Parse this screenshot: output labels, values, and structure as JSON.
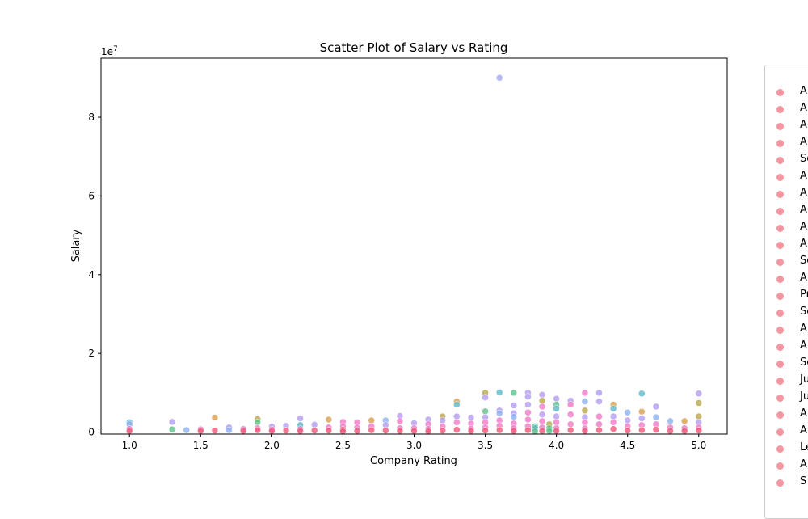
{
  "chart_data": {
    "type": "scatter",
    "title": "Scatter Plot of Salary vs Rating",
    "xlabel": "Company Rating",
    "ylabel": "Salary",
    "y_scale_label": "1e7",
    "xlim": [
      0.8,
      5.2
    ],
    "ylim": [
      -500000,
      95000000
    ],
    "x_ticks": [
      1.0,
      1.5,
      2.0,
      2.5,
      3.0,
      3.5,
      4.0,
      4.5,
      5.0
    ],
    "x_tick_labels": [
      "1.0",
      "1.5",
      "2.0",
      "2.5",
      "3.0",
      "3.5",
      "4.0",
      "4.5",
      "5.0"
    ],
    "y_ticks": [
      0,
      20000000,
      40000000,
      60000000,
      80000000
    ],
    "y_tick_labels": [
      "0",
      "2",
      "4",
      "6",
      "8"
    ],
    "grid": false,
    "legend_placement": "outside right",
    "colors": {
      "outlier": "#a5a8f3",
      "purple": "#b49cf0",
      "blue": "#8fb0f0",
      "teal": "#5cb8c8",
      "green": "#5ec28a",
      "olive": "#b8a84a",
      "orange": "#d8a050",
      "pink": "#f07ac8",
      "red": "#f05878"
    },
    "points": [
      {
        "x": 3.6,
        "y": 90000000,
        "c": "outlier"
      },
      {
        "x": 1.0,
        "y": 2500000,
        "c": "teal"
      },
      {
        "x": 1.0,
        "y": 2000000,
        "c": "blue"
      },
      {
        "x": 1.0,
        "y": 800000,
        "c": "pink"
      },
      {
        "x": 1.0,
        "y": 300000,
        "c": "red"
      },
      {
        "x": 1.3,
        "y": 2600000,
        "c": "purple"
      },
      {
        "x": 1.3,
        "y": 700000,
        "c": "green"
      },
      {
        "x": 1.4,
        "y": 500000,
        "c": "blue"
      },
      {
        "x": 1.5,
        "y": 700000,
        "c": "pink"
      },
      {
        "x": 1.5,
        "y": 300000,
        "c": "red"
      },
      {
        "x": 1.6,
        "y": 3700000,
        "c": "orange"
      },
      {
        "x": 1.6,
        "y": 400000,
        "c": "red"
      },
      {
        "x": 1.7,
        "y": 1200000,
        "c": "purple"
      },
      {
        "x": 1.7,
        "y": 500000,
        "c": "blue"
      },
      {
        "x": 1.8,
        "y": 800000,
        "c": "pink"
      },
      {
        "x": 1.8,
        "y": 300000,
        "c": "red"
      },
      {
        "x": 1.9,
        "y": 3300000,
        "c": "olive"
      },
      {
        "x": 1.9,
        "y": 2500000,
        "c": "green"
      },
      {
        "x": 1.9,
        "y": 1000000,
        "c": "pink"
      },
      {
        "x": 1.9,
        "y": 500000,
        "c": "red"
      },
      {
        "x": 2.0,
        "y": 1400000,
        "c": "purple"
      },
      {
        "x": 2.0,
        "y": 700000,
        "c": "pink"
      },
      {
        "x": 2.0,
        "y": 300000,
        "c": "red"
      },
      {
        "x": 2.1,
        "y": 1600000,
        "c": "purple"
      },
      {
        "x": 2.1,
        "y": 400000,
        "c": "red"
      },
      {
        "x": 2.2,
        "y": 3500000,
        "c": "purple"
      },
      {
        "x": 2.2,
        "y": 1800000,
        "c": "teal"
      },
      {
        "x": 2.2,
        "y": 800000,
        "c": "pink"
      },
      {
        "x": 2.2,
        "y": 300000,
        "c": "red"
      },
      {
        "x": 2.3,
        "y": 1900000,
        "c": "purple"
      },
      {
        "x": 2.3,
        "y": 400000,
        "c": "red"
      },
      {
        "x": 2.4,
        "y": 3200000,
        "c": "orange"
      },
      {
        "x": 2.4,
        "y": 1200000,
        "c": "pink"
      },
      {
        "x": 2.4,
        "y": 400000,
        "c": "red"
      },
      {
        "x": 2.5,
        "y": 2600000,
        "c": "pink"
      },
      {
        "x": 2.5,
        "y": 1500000,
        "c": "pink"
      },
      {
        "x": 2.5,
        "y": 600000,
        "c": "red"
      },
      {
        "x": 2.5,
        "y": 200000,
        "c": "red"
      },
      {
        "x": 2.6,
        "y": 2500000,
        "c": "pink"
      },
      {
        "x": 2.6,
        "y": 1200000,
        "c": "pink"
      },
      {
        "x": 2.6,
        "y": 300000,
        "c": "red"
      },
      {
        "x": 2.7,
        "y": 3000000,
        "c": "orange"
      },
      {
        "x": 2.7,
        "y": 1500000,
        "c": "pink"
      },
      {
        "x": 2.7,
        "y": 500000,
        "c": "red"
      },
      {
        "x": 2.8,
        "y": 3000000,
        "c": "blue"
      },
      {
        "x": 2.8,
        "y": 1800000,
        "c": "purple"
      },
      {
        "x": 2.8,
        "y": 400000,
        "c": "red"
      },
      {
        "x": 2.9,
        "y": 4100000,
        "c": "purple"
      },
      {
        "x": 2.9,
        "y": 2800000,
        "c": "pink"
      },
      {
        "x": 2.9,
        "y": 1000000,
        "c": "pink"
      },
      {
        "x": 2.9,
        "y": 300000,
        "c": "red"
      },
      {
        "x": 3.0,
        "y": 2300000,
        "c": "purple"
      },
      {
        "x": 3.0,
        "y": 1000000,
        "c": "pink"
      },
      {
        "x": 3.0,
        "y": 300000,
        "c": "red"
      },
      {
        "x": 3.1,
        "y": 3200000,
        "c": "purple"
      },
      {
        "x": 3.1,
        "y": 2000000,
        "c": "pink"
      },
      {
        "x": 3.1,
        "y": 800000,
        "c": "pink"
      },
      {
        "x": 3.1,
        "y": 200000,
        "c": "red"
      },
      {
        "x": 3.2,
        "y": 4000000,
        "c": "olive"
      },
      {
        "x": 3.2,
        "y": 3000000,
        "c": "purple"
      },
      {
        "x": 3.2,
        "y": 1500000,
        "c": "pink"
      },
      {
        "x": 3.2,
        "y": 400000,
        "c": "red"
      },
      {
        "x": 3.3,
        "y": 7800000,
        "c": "orange"
      },
      {
        "x": 3.3,
        "y": 7000000,
        "c": "teal"
      },
      {
        "x": 3.3,
        "y": 4000000,
        "c": "purple"
      },
      {
        "x": 3.3,
        "y": 2500000,
        "c": "pink"
      },
      {
        "x": 3.3,
        "y": 600000,
        "c": "red"
      },
      {
        "x": 3.4,
        "y": 3700000,
        "c": "purple"
      },
      {
        "x": 3.4,
        "y": 2200000,
        "c": "pink"
      },
      {
        "x": 3.4,
        "y": 900000,
        "c": "pink"
      },
      {
        "x": 3.4,
        "y": 300000,
        "c": "red"
      },
      {
        "x": 3.5,
        "y": 10000000,
        "c": "olive"
      },
      {
        "x": 3.5,
        "y": 8800000,
        "c": "purple"
      },
      {
        "x": 3.5,
        "y": 5300000,
        "c": "green"
      },
      {
        "x": 3.5,
        "y": 3800000,
        "c": "purple"
      },
      {
        "x": 3.5,
        "y": 2500000,
        "c": "pink"
      },
      {
        "x": 3.5,
        "y": 1200000,
        "c": "pink"
      },
      {
        "x": 3.5,
        "y": 400000,
        "c": "red"
      },
      {
        "x": 3.6,
        "y": 10100000,
        "c": "teal"
      },
      {
        "x": 3.6,
        "y": 5500000,
        "c": "purple"
      },
      {
        "x": 3.6,
        "y": 4800000,
        "c": "blue"
      },
      {
        "x": 3.6,
        "y": 3000000,
        "c": "pink"
      },
      {
        "x": 3.6,
        "y": 1600000,
        "c": "pink"
      },
      {
        "x": 3.6,
        "y": 500000,
        "c": "red"
      },
      {
        "x": 3.7,
        "y": 10000000,
        "c": "green"
      },
      {
        "x": 3.7,
        "y": 6800000,
        "c": "purple"
      },
      {
        "x": 3.7,
        "y": 4800000,
        "c": "purple"
      },
      {
        "x": 3.7,
        "y": 3900000,
        "c": "blue"
      },
      {
        "x": 3.7,
        "y": 2200000,
        "c": "pink"
      },
      {
        "x": 3.7,
        "y": 1000000,
        "c": "pink"
      },
      {
        "x": 3.7,
        "y": 300000,
        "c": "red"
      },
      {
        "x": 3.8,
        "y": 10000000,
        "c": "purple"
      },
      {
        "x": 3.8,
        "y": 9000000,
        "c": "purple"
      },
      {
        "x": 3.8,
        "y": 7000000,
        "c": "purple"
      },
      {
        "x": 3.8,
        "y": 5000000,
        "c": "pink"
      },
      {
        "x": 3.8,
        "y": 3200000,
        "c": "pink"
      },
      {
        "x": 3.8,
        "y": 1500000,
        "c": "pink"
      },
      {
        "x": 3.8,
        "y": 500000,
        "c": "red"
      },
      {
        "x": 3.85,
        "y": 1500000,
        "c": "green"
      },
      {
        "x": 3.85,
        "y": 1000000,
        "c": "teal"
      },
      {
        "x": 3.85,
        "y": 200000,
        "c": "green"
      },
      {
        "x": 3.9,
        "y": 9500000,
        "c": "purple"
      },
      {
        "x": 3.9,
        "y": 8000000,
        "c": "olive"
      },
      {
        "x": 3.9,
        "y": 6500000,
        "c": "pink"
      },
      {
        "x": 3.9,
        "y": 4500000,
        "c": "purple"
      },
      {
        "x": 3.9,
        "y": 2800000,
        "c": "pink"
      },
      {
        "x": 3.9,
        "y": 1200000,
        "c": "pink"
      },
      {
        "x": 3.9,
        "y": 300000,
        "c": "red"
      },
      {
        "x": 3.95,
        "y": 2000000,
        "c": "olive"
      },
      {
        "x": 3.95,
        "y": 1000000,
        "c": "green"
      },
      {
        "x": 3.95,
        "y": 300000,
        "c": "green"
      },
      {
        "x": 4.0,
        "y": 8500000,
        "c": "purple"
      },
      {
        "x": 4.0,
        "y": 7000000,
        "c": "green"
      },
      {
        "x": 4.0,
        "y": 6000000,
        "c": "teal"
      },
      {
        "x": 4.0,
        "y": 4000000,
        "c": "purple"
      },
      {
        "x": 4.0,
        "y": 2500000,
        "c": "pink"
      },
      {
        "x": 4.0,
        "y": 1000000,
        "c": "pink"
      },
      {
        "x": 4.0,
        "y": 300000,
        "c": "red"
      },
      {
        "x": 4.1,
        "y": 8000000,
        "c": "purple"
      },
      {
        "x": 4.1,
        "y": 7000000,
        "c": "pink"
      },
      {
        "x": 4.1,
        "y": 4500000,
        "c": "pink"
      },
      {
        "x": 4.1,
        "y": 2000000,
        "c": "pink"
      },
      {
        "x": 4.1,
        "y": 500000,
        "c": "red"
      },
      {
        "x": 4.2,
        "y": 10000000,
        "c": "pink"
      },
      {
        "x": 4.2,
        "y": 7800000,
        "c": "blue"
      },
      {
        "x": 4.2,
        "y": 5500000,
        "c": "olive"
      },
      {
        "x": 4.2,
        "y": 3800000,
        "c": "purple"
      },
      {
        "x": 4.2,
        "y": 2500000,
        "c": "pink"
      },
      {
        "x": 4.2,
        "y": 1000000,
        "c": "pink"
      },
      {
        "x": 4.2,
        "y": 300000,
        "c": "red"
      },
      {
        "x": 4.3,
        "y": 10000000,
        "c": "purple"
      },
      {
        "x": 4.3,
        "y": 7800000,
        "c": "purple"
      },
      {
        "x": 4.3,
        "y": 4000000,
        "c": "pink"
      },
      {
        "x": 4.3,
        "y": 2000000,
        "c": "pink"
      },
      {
        "x": 4.3,
        "y": 500000,
        "c": "red"
      },
      {
        "x": 4.4,
        "y": 7000000,
        "c": "orange"
      },
      {
        "x": 4.4,
        "y": 6000000,
        "c": "teal"
      },
      {
        "x": 4.4,
        "y": 4000000,
        "c": "purple"
      },
      {
        "x": 4.4,
        "y": 2500000,
        "c": "pink"
      },
      {
        "x": 4.4,
        "y": 800000,
        "c": "red"
      },
      {
        "x": 4.5,
        "y": 5000000,
        "c": "blue"
      },
      {
        "x": 4.5,
        "y": 3000000,
        "c": "purple"
      },
      {
        "x": 4.5,
        "y": 1500000,
        "c": "pink"
      },
      {
        "x": 4.5,
        "y": 400000,
        "c": "red"
      },
      {
        "x": 4.6,
        "y": 9800000,
        "c": "teal"
      },
      {
        "x": 4.6,
        "y": 5200000,
        "c": "orange"
      },
      {
        "x": 4.6,
        "y": 3500000,
        "c": "purple"
      },
      {
        "x": 4.6,
        "y": 1800000,
        "c": "pink"
      },
      {
        "x": 4.6,
        "y": 500000,
        "c": "red"
      },
      {
        "x": 4.7,
        "y": 6500000,
        "c": "purple"
      },
      {
        "x": 4.7,
        "y": 3800000,
        "c": "blue"
      },
      {
        "x": 4.7,
        "y": 2000000,
        "c": "pink"
      },
      {
        "x": 4.7,
        "y": 600000,
        "c": "red"
      },
      {
        "x": 4.8,
        "y": 2800000,
        "c": "blue"
      },
      {
        "x": 4.8,
        "y": 1200000,
        "c": "pink"
      },
      {
        "x": 4.8,
        "y": 300000,
        "c": "red"
      },
      {
        "x": 4.9,
        "y": 2800000,
        "c": "orange"
      },
      {
        "x": 4.9,
        "y": 1000000,
        "c": "pink"
      },
      {
        "x": 4.9,
        "y": 300000,
        "c": "red"
      },
      {
        "x": 5.0,
        "y": 9800000,
        "c": "purple"
      },
      {
        "x": 5.0,
        "y": 7400000,
        "c": "olive"
      },
      {
        "x": 5.0,
        "y": 4000000,
        "c": "olive"
      },
      {
        "x": 5.0,
        "y": 2500000,
        "c": "purple"
      },
      {
        "x": 5.0,
        "y": 1200000,
        "c": "pink"
      },
      {
        "x": 5.0,
        "y": 400000,
        "c": "red"
      }
    ],
    "legend_color": "#f27d88",
    "legend_entries": [
      "A",
      "A",
      "A",
      "A",
      "Se",
      "A",
      "A",
      "A",
      "A",
      "A",
      "Se",
      "A",
      "Pr",
      "Se",
      "A",
      "A",
      "Se",
      "Ju",
      "Ju",
      "A",
      "A",
      "Le",
      "A",
      "S"
    ]
  }
}
